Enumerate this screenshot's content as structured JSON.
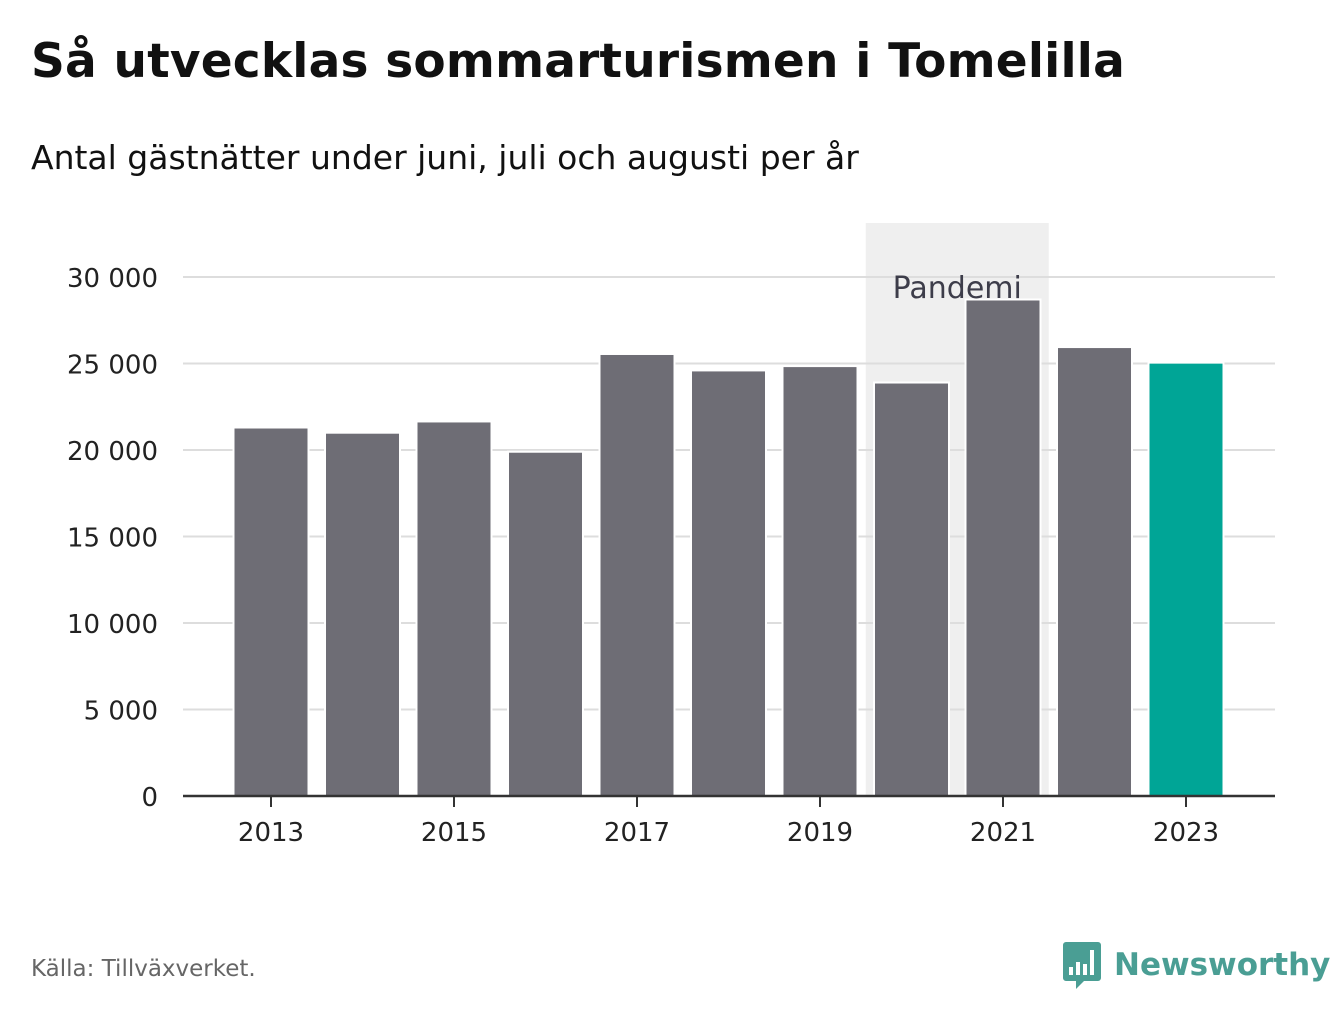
{
  "title": "Så utvecklas sommarturismen i Tomelilla",
  "subtitle": "Antal gästnätter under juni, juli och augusti per år",
  "source": "Källa: Tillväxverket.",
  "brand": {
    "name": "Newsworthy",
    "icon": "newsworthy-logo-icon",
    "color": "#4a9e94"
  },
  "colors": {
    "bar": "#6e6d75",
    "highlight": "#00a596",
    "grid": "#dddddd",
    "axis": "#333333",
    "band": "#efefef"
  },
  "chart_data": {
    "type": "bar",
    "categories": [
      "2013",
      "2014",
      "2015",
      "2016",
      "2017",
      "2018",
      "2019",
      "2020",
      "2021",
      "2022",
      "2023"
    ],
    "values": [
      21300,
      21000,
      21650,
      19900,
      25550,
      24600,
      24850,
      23900,
      28700,
      25950,
      25050
    ],
    "highlight_category": "2023",
    "x_tick_labels": [
      "2013",
      "2015",
      "2017",
      "2019",
      "2021",
      "2023"
    ],
    "y_ticks": [
      0,
      5000,
      10000,
      15000,
      20000,
      25000,
      30000
    ],
    "y_tick_labels": [
      "0",
      "5 000",
      "10 000",
      "15 000",
      "20 000",
      "25 000",
      "30 000"
    ],
    "ylim": [
      0,
      32000
    ],
    "grid": true,
    "xlabel": "",
    "ylabel": "",
    "annotation": {
      "label": "Pandemi",
      "from": "2020",
      "to": "2021"
    }
  }
}
